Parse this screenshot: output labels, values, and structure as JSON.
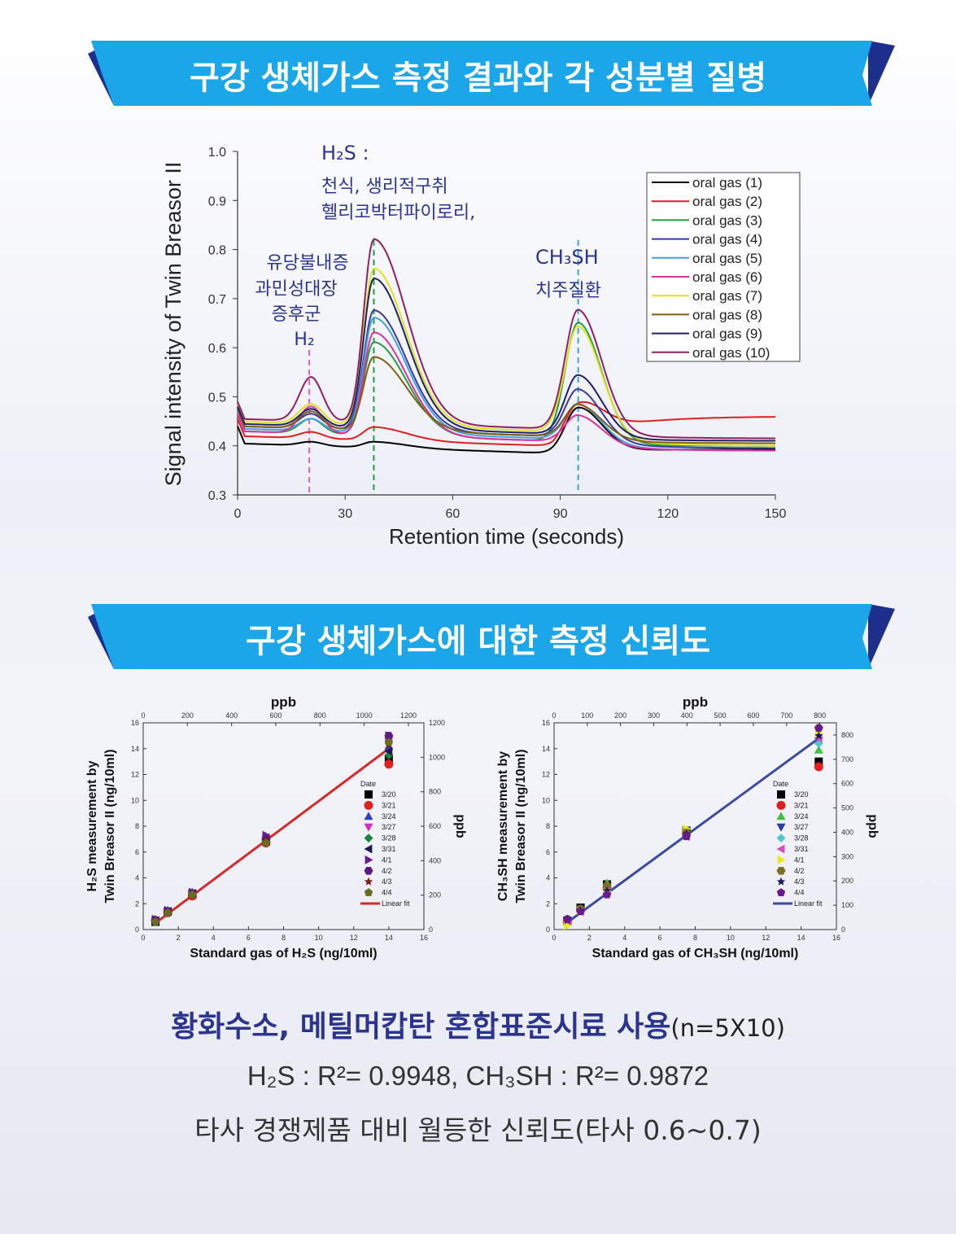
{
  "banner1": {
    "title": "구강 생체가스 측정 결과와 각 성분별 질병"
  },
  "banner2": {
    "title": "구강 생체가스에 대한 측정 신뢰도"
  },
  "chart_data": [
    {
      "type": "line",
      "xlabel": "Retention time (seconds)",
      "ylabel": "Signal intensity of  Twin Breasor II",
      "xlim": [
        0,
        150
      ],
      "ylim": [
        0.3,
        1.0
      ],
      "xticks": [
        0,
        30,
        60,
        90,
        120,
        150
      ],
      "yticks": [
        0.3,
        0.4,
        0.5,
        0.6,
        0.7,
        0.8,
        0.9,
        1.0
      ],
      "legend_position": "top-right",
      "series": [
        {
          "name": "oral gas (1)",
          "color": "#000000",
          "base": 0.405,
          "p1": 0.008,
          "p2": 0.012,
          "p3": 0.09,
          "tail": 0.393
        },
        {
          "name": "oral gas (2)",
          "color": "#e02020",
          "base": 0.42,
          "p1": 0.013,
          "p2": 0.027,
          "p3": 0.065,
          "tail": 0.46
        },
        {
          "name": "oral gas (3)",
          "color": "#20a040",
          "base": 0.43,
          "p1": 0.03,
          "p2": 0.19,
          "p3": 0.245,
          "tail": 0.4
        },
        {
          "name": "oral gas (4)",
          "color": "#3a3aa0",
          "base": 0.44,
          "p1": 0.03,
          "p2": 0.245,
          "p3": 0.105,
          "tail": 0.395
        },
        {
          "name": "oral gas (5)",
          "color": "#40a0e0",
          "base": 0.435,
          "p1": 0.025,
          "p2": 0.235,
          "p3": 0.08,
          "tail": 0.39
        },
        {
          "name": "oral gas (6)",
          "color": "#e030a0",
          "base": 0.43,
          "p1": 0.055,
          "p2": 0.21,
          "p3": 0.06,
          "tail": 0.39
        },
        {
          "name": "oral gas (7)",
          "color": "#e0e020",
          "base": 0.45,
          "p1": 0.04,
          "p2": 0.32,
          "p3": 0.225,
          "tail": 0.4
        },
        {
          "name": "oral gas (8)",
          "color": "#806010",
          "base": 0.44,
          "p1": 0.035,
          "p2": 0.15,
          "p3": 0.07,
          "tail": 0.405
        },
        {
          "name": "oral gas (9)",
          "color": "#20206a",
          "base": 0.445,
          "p1": 0.035,
          "p2": 0.305,
          "p3": 0.125,
          "tail": 0.41
        },
        {
          "name": "oral gas (10)",
          "color": "#902060",
          "base": 0.455,
          "p1": 0.09,
          "p2": 0.375,
          "p3": 0.25,
          "tail": 0.415
        }
      ],
      "markers": [
        {
          "x": 20,
          "color": "#e060c0"
        },
        {
          "x": 38,
          "color": "#20a040"
        },
        {
          "x": 95,
          "color": "#40a0e0"
        }
      ],
      "annotations": {
        "h2s_formula": "H₂S :",
        "h2s_line1": "천식, 생리적구취",
        "h2s_line2": "헬리코박터파이로리,",
        "h2_line1": "유당불내증",
        "h2_line2": "과민성대장",
        "h2_line3": "증후군",
        "h2_formula": "H₂",
        "ch3sh_formula": "CH₃SH",
        "ch3sh_line1": "치주질환"
      }
    },
    {
      "type": "scatter",
      "xlabel": "Standard gas of H₂S (ng/10ml)",
      "ylabel_line1": "H₂S measurement by",
      "ylabel_line2": "Twin Breasor II (ng/10ml)",
      "top_axis_label": "ppb",
      "right_axis_label": "ppb",
      "xlim": [
        0,
        16
      ],
      "ylim": [
        0,
        16
      ],
      "xticks": [
        0,
        2,
        4,
        6,
        8,
        10,
        12,
        14,
        16
      ],
      "yticks": [
        0,
        2,
        4,
        6,
        8,
        10,
        12,
        14,
        16
      ],
      "top_ticks": [
        0,
        200,
        400,
        600,
        800,
        1000,
        1200
      ],
      "right_ticks": [
        0,
        200,
        400,
        600,
        800,
        1000,
        1200
      ],
      "legend_title": "Date",
      "fit": {
        "name": "Linear fit",
        "color": "#d42a2a",
        "x": [
          0.7,
          14
        ],
        "y": [
          0.5,
          14.0
        ]
      },
      "series": [
        {
          "name": "3/20",
          "marker": "square",
          "color": "#000000",
          "points": [
            [
              0.7,
              0.6
            ],
            [
              1.4,
              1.4
            ],
            [
              2.8,
              2.7
            ],
            [
              7.0,
              6.8
            ],
            [
              14,
              13.2
            ]
          ]
        },
        {
          "name": "3/21",
          "marker": "circle",
          "color": "#e02020",
          "points": [
            [
              0.7,
              0.7
            ],
            [
              1.4,
              1.3
            ],
            [
              2.8,
              2.6
            ],
            [
              7.0,
              6.7
            ],
            [
              14,
              12.8
            ]
          ]
        },
        {
          "name": "3/24",
          "marker": "triangle-up",
          "color": "#3040c0",
          "points": [
            [
              0.7,
              0.8
            ],
            [
              1.4,
              1.5
            ],
            [
              2.8,
              2.9
            ],
            [
              7.0,
              7.2
            ],
            [
              14,
              14.2
            ]
          ]
        },
        {
          "name": "3/27",
          "marker": "triangle-down",
          "color": "#d030c0",
          "points": [
            [
              0.7,
              0.7
            ],
            [
              1.4,
              1.4
            ],
            [
              2.8,
              2.8
            ],
            [
              7.0,
              7.0
            ],
            [
              14,
              14.6
            ]
          ]
        },
        {
          "name": "3/28",
          "marker": "diamond",
          "color": "#208040",
          "points": [
            [
              0.7,
              0.6
            ],
            [
              1.4,
              1.3
            ],
            [
              2.8,
              2.7
            ],
            [
              7.0,
              6.8
            ],
            [
              14,
              13.5
            ]
          ]
        },
        {
          "name": "3/31",
          "marker": "triangle-left",
          "color": "#1a1a50",
          "points": [
            [
              0.7,
              0.7
            ],
            [
              1.4,
              1.4
            ],
            [
              2.8,
              2.8
            ],
            [
              7.0,
              7.1
            ],
            [
              14,
              13.8
            ]
          ]
        },
        {
          "name": "4/1",
          "marker": "triangle-right",
          "color": "#6a1a90",
          "points": [
            [
              0.7,
              0.8
            ],
            [
              1.4,
              1.5
            ],
            [
              2.8,
              2.9
            ],
            [
              7.0,
              7.3
            ],
            [
              14,
              15.0
            ]
          ]
        },
        {
          "name": "4/2",
          "marker": "hexagon",
          "color": "#5a1a80",
          "points": [
            [
              0.7,
              0.7
            ],
            [
              1.4,
              1.4
            ],
            [
              2.8,
              2.8
            ],
            [
              7.0,
              7.0
            ],
            [
              14,
              15.0
            ]
          ]
        },
        {
          "name": "4/3",
          "marker": "star",
          "color": "#801a1a",
          "points": [
            [
              0.7,
              0.6
            ],
            [
              1.4,
              1.3
            ],
            [
              2.8,
              2.7
            ],
            [
              7.0,
              6.9
            ],
            [
              14,
              14.3
            ]
          ]
        },
        {
          "name": "4/4",
          "marker": "pentagon",
          "color": "#6a6a20",
          "points": [
            [
              0.7,
              0.6
            ],
            [
              1.4,
              1.3
            ],
            [
              2.8,
              2.7
            ],
            [
              7.0,
              6.7
            ],
            [
              14,
              14.5
            ]
          ]
        }
      ]
    },
    {
      "type": "scatter",
      "xlabel": "Standard gas of CH₃SH (ng/10ml)",
      "ylabel_line1": "CH₃SH measurement by",
      "ylabel_line2": "Twin Breasor II (ng/10ml)",
      "top_axis_label": "ppb",
      "right_axis_label": "ppb",
      "xlim": [
        0,
        16
      ],
      "ylim": [
        0,
        16
      ],
      "xticks": [
        0,
        2,
        4,
        6,
        8,
        10,
        12,
        14,
        16
      ],
      "yticks": [
        0,
        2,
        4,
        6,
        8,
        10,
        12,
        14,
        16
      ],
      "top_ticks": [
        0,
        100,
        200,
        300,
        400,
        500,
        600,
        700,
        800
      ],
      "right_ticks": [
        0,
        100,
        200,
        300,
        400,
        500,
        600,
        700,
        800
      ],
      "legend_title": "Date",
      "fit": {
        "name": "Linear fit",
        "color": "#3a4aa0",
        "x": [
          0.7,
          15
        ],
        "y": [
          0.5,
          14.8
        ]
      },
      "series": [
        {
          "name": "3/20",
          "marker": "square",
          "color": "#000000",
          "points": [
            [
              0.75,
              0.7
            ],
            [
              1.5,
              1.7
            ],
            [
              3.0,
              3.5
            ],
            [
              7.5,
              7.6
            ],
            [
              15,
              13.0
            ]
          ]
        },
        {
          "name": "3/21",
          "marker": "circle",
          "color": "#e02020",
          "points": [
            [
              0.75,
              0.6
            ],
            [
              1.5,
              1.5
            ],
            [
              3.0,
              3.2
            ],
            [
              7.5,
              7.4
            ],
            [
              15,
              12.6
            ]
          ]
        },
        {
          "name": "3/24",
          "marker": "triangle-up",
          "color": "#40c040",
          "points": [
            [
              0.75,
              0.6
            ],
            [
              1.5,
              1.6
            ],
            [
              3.0,
              3.6
            ],
            [
              7.5,
              7.5
            ],
            [
              15,
              13.9
            ]
          ]
        },
        {
          "name": "3/27",
          "marker": "triangle-down",
          "color": "#2a3aa0",
          "points": [
            [
              0.75,
              0.7
            ],
            [
              1.5,
              1.5
            ],
            [
              3.0,
              3.3
            ],
            [
              7.5,
              7.7
            ],
            [
              15,
              14.6
            ]
          ]
        },
        {
          "name": "3/28",
          "marker": "diamond",
          "color": "#50c8d0",
          "points": [
            [
              0.75,
              0.8
            ],
            [
              1.5,
              1.6
            ],
            [
              3.0,
              3.1
            ],
            [
              7.5,
              7.3
            ],
            [
              15,
              14.4
            ]
          ]
        },
        {
          "name": "3/31",
          "marker": "triangle-left",
          "color": "#d050c0",
          "points": [
            [
              0.75,
              0.6
            ],
            [
              1.5,
              1.4
            ],
            [
              3.0,
              2.9
            ],
            [
              7.5,
              7.2
            ],
            [
              15,
              14.8
            ]
          ]
        },
        {
          "name": "4/1",
          "marker": "triangle-right",
          "color": "#e8e820",
          "points": [
            [
              0.75,
              0.3
            ],
            [
              1.5,
              1.5
            ],
            [
              3.0,
              3.0
            ],
            [
              7.5,
              7.8
            ],
            [
              15,
              15.2
            ]
          ]
        },
        {
          "name": "4/2",
          "marker": "hexagon",
          "color": "#7a7020",
          "points": [
            [
              0.75,
              0.8
            ],
            [
              1.5,
              1.6
            ],
            [
              3.0,
              3.4
            ],
            [
              7.5,
              7.5
            ],
            [
              15,
              15.6
            ]
          ]
        },
        {
          "name": "4/3",
          "marker": "star",
          "color": "#1a1a60",
          "points": [
            [
              0.75,
              0.7
            ],
            [
              1.5,
              1.5
            ],
            [
              3.0,
              3.0
            ],
            [
              7.5,
              7.4
            ],
            [
              15,
              15.0
            ]
          ]
        },
        {
          "name": "4/4",
          "marker": "pentagon",
          "color": "#6a1a90",
          "points": [
            [
              0.75,
              0.8
            ],
            [
              1.5,
              1.4
            ],
            [
              3.0,
              2.7
            ],
            [
              7.5,
              7.2
            ],
            [
              15,
              15.6
            ]
          ]
        }
      ]
    }
  ],
  "summary": {
    "title": "황화수소, 메틸머캅탄 혼합표준시료 사용",
    "n_note": "(n=5X10)",
    "r2_line": "H₂S : R²= 0.9948, CH₃SH : R²= 0.9872",
    "compare_line": "타사 경쟁제품 대비 월등한 신뢰도(타사 0.6~0.7)"
  },
  "colors": {
    "banner": "#1aa6e8",
    "banner_dark": "#1c2f8a",
    "title_navy": "#2b3590",
    "annotation": "#2b3590"
  }
}
